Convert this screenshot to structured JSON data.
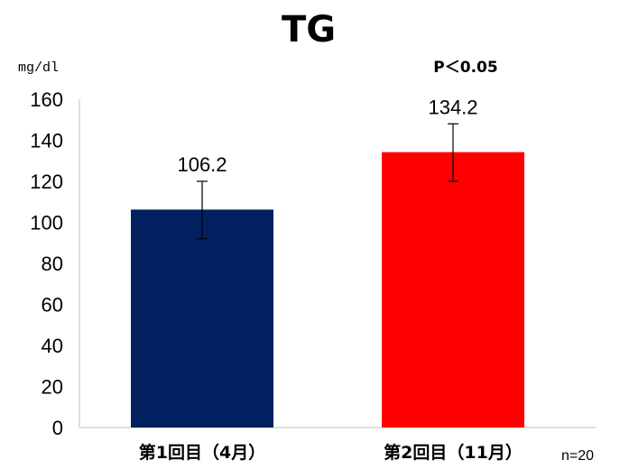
{
  "chart_data": {
    "type": "bar",
    "title": "TG",
    "ylabel": "mg/dl",
    "xlabel": "",
    "ylim": [
      0,
      160
    ],
    "yticks": [
      0,
      20,
      40,
      60,
      80,
      100,
      120,
      140,
      160
    ],
    "categories": [
      "第1回目（4月）",
      "第2回目（11月）"
    ],
    "values": [
      106.2,
      134.2
    ],
    "data_labels": [
      "106.2",
      "134.2"
    ],
    "error_low": [
      92,
      120
    ],
    "error_high": [
      120,
      148
    ],
    "colors": [
      "#002060",
      "#ff0000"
    ],
    "grid": false,
    "legend": "none",
    "annotations": {
      "p_value": "P＜0.05",
      "n": "n=20"
    }
  }
}
